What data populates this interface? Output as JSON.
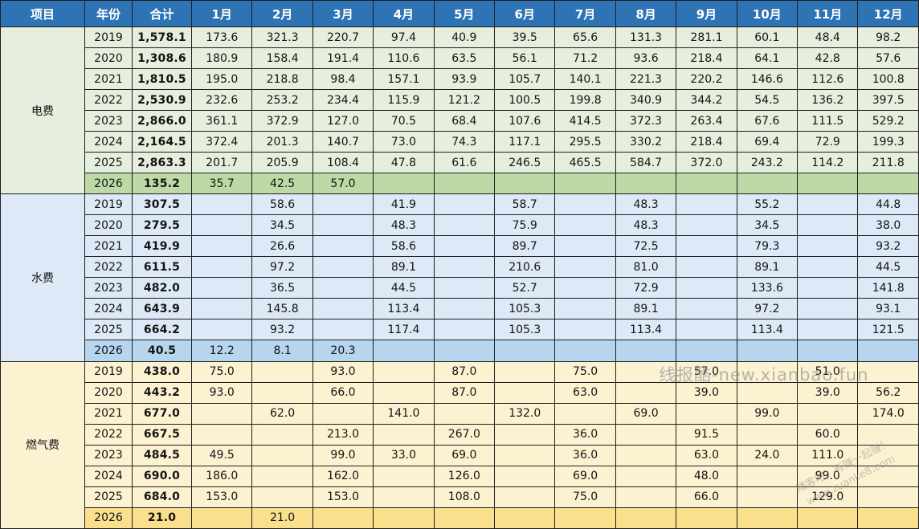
{
  "colors": {
    "header_bg": "#2e74b5",
    "header_text": "#ffffff",
    "grid_line": "#1f1f1f",
    "text": "#141414"
  },
  "columns": [
    "项目",
    "年份",
    "合计",
    "1月",
    "2月",
    "3月",
    "4月",
    "5月",
    "6月",
    "7月",
    "8月",
    "9月",
    "10月",
    "11月",
    "12月"
  ],
  "watermarks": {
    "horizontal": "线报酷-new.xianbao.fun",
    "rotated_line1": "赚客吧，有赚一起赚！",
    "rotated_line2": "www.zuanke8.com"
  },
  "sections": [
    {
      "label": "电费",
      "row_bg": "#e6efdd",
      "label_bg": "#e6efdd",
      "highlight_bg": "#bcd9a6",
      "rows": [
        {
          "year": "2019",
          "total": "1,578.1",
          "months": [
            "173.6",
            "321.3",
            "220.7",
            "97.4",
            "40.9",
            "39.5",
            "65.6",
            "131.3",
            "281.1",
            "60.1",
            "48.4",
            "98.2"
          ]
        },
        {
          "year": "2020",
          "total": "1,308.6",
          "months": [
            "180.9",
            "158.4",
            "191.4",
            "110.6",
            "63.5",
            "56.1",
            "71.2",
            "93.6",
            "218.4",
            "64.1",
            "42.8",
            "57.6"
          ]
        },
        {
          "year": "2021",
          "total": "1,810.5",
          "months": [
            "195.0",
            "218.8",
            "98.4",
            "157.1",
            "93.9",
            "105.7",
            "140.1",
            "221.3",
            "220.2",
            "146.6",
            "112.6",
            "100.8"
          ]
        },
        {
          "year": "2022",
          "total": "2,530.9",
          "months": [
            "232.6",
            "253.2",
            "234.4",
            "115.9",
            "121.2",
            "100.5",
            "199.8",
            "340.9",
            "344.2",
            "54.5",
            "136.2",
            "397.5"
          ]
        },
        {
          "year": "2023",
          "total": "2,866.0",
          "months": [
            "361.1",
            "372.9",
            "127.0",
            "70.5",
            "68.4",
            "107.6",
            "414.5",
            "372.3",
            "263.4",
            "67.6",
            "111.5",
            "529.2"
          ]
        },
        {
          "year": "2024",
          "total": "2,164.5",
          "months": [
            "372.4",
            "201.3",
            "140.7",
            "73.0",
            "74.3",
            "117.1",
            "295.5",
            "330.2",
            "218.4",
            "69.4",
            "72.9",
            "199.3"
          ]
        },
        {
          "year": "2025",
          "total": "2,863.3",
          "months": [
            "201.7",
            "205.9",
            "108.4",
            "47.8",
            "61.6",
            "246.5",
            "465.5",
            "584.7",
            "372.0",
            "243.2",
            "114.2",
            "211.8"
          ]
        },
        {
          "year": "2026",
          "total": "135.2",
          "highlight": true,
          "months": [
            "35.7",
            "42.5",
            "57.0",
            "",
            "",
            "",
            "",
            "",
            "",
            "",
            "",
            ""
          ]
        }
      ]
    },
    {
      "label": "水费",
      "row_bg": "#dde9f6",
      "label_bg": "#dde9f6",
      "highlight_bg": "#b7d5ee",
      "rows": [
        {
          "year": "2019",
          "total": "307.5",
          "months": [
            "",
            "58.6",
            "",
            "41.9",
            "",
            "58.7",
            "",
            "48.3",
            "",
            "55.2",
            "",
            "44.8"
          ]
        },
        {
          "year": "2020",
          "total": "279.5",
          "months": [
            "",
            "34.5",
            "",
            "48.3",
            "",
            "75.9",
            "",
            "48.3",
            "",
            "34.5",
            "",
            "38.0"
          ]
        },
        {
          "year": "2021",
          "total": "419.9",
          "months": [
            "",
            "26.6",
            "",
            "58.6",
            "",
            "89.7",
            "",
            "72.5",
            "",
            "79.3",
            "",
            "93.2"
          ]
        },
        {
          "year": "2022",
          "total": "611.5",
          "months": [
            "",
            "97.2",
            "",
            "89.1",
            "",
            "210.6",
            "",
            "81.0",
            "",
            "89.1",
            "",
            "44.5"
          ]
        },
        {
          "year": "2023",
          "total": "482.0",
          "months": [
            "",
            "36.5",
            "",
            "44.5",
            "",
            "52.7",
            "",
            "72.9",
            "",
            "133.6",
            "",
            "141.8"
          ]
        },
        {
          "year": "2024",
          "total": "643.9",
          "months": [
            "",
            "145.8",
            "",
            "113.4",
            "",
            "105.3",
            "",
            "89.1",
            "",
            "97.2",
            "",
            "93.1"
          ]
        },
        {
          "year": "2025",
          "total": "664.2",
          "months": [
            "",
            "93.2",
            "",
            "117.4",
            "",
            "105.3",
            "",
            "113.4",
            "",
            "113.4",
            "",
            "121.5"
          ]
        },
        {
          "year": "2026",
          "total": "40.5",
          "highlight": true,
          "months": [
            "12.2",
            "8.1",
            "20.3",
            "",
            "",
            "",
            "",
            "",
            "",
            "",
            "",
            ""
          ]
        }
      ]
    },
    {
      "label": "燃气费",
      "row_bg": "#fcf2d2",
      "label_bg": "#fcf2d2",
      "highlight_bg": "#fadf8d",
      "rows": [
        {
          "year": "2019",
          "total": "438.0",
          "months": [
            "75.0",
            "",
            "93.0",
            "",
            "87.0",
            "",
            "75.0",
            "",
            "57.0",
            "",
            "51.0",
            ""
          ]
        },
        {
          "year": "2020",
          "total": "443.2",
          "months": [
            "93.0",
            "",
            "66.0",
            "",
            "87.0",
            "",
            "63.0",
            "",
            "39.0",
            "",
            "39.0",
            "56.2"
          ]
        },
        {
          "year": "2021",
          "total": "677.0",
          "months": [
            "",
            "62.0",
            "",
            "141.0",
            "",
            "132.0",
            "",
            "69.0",
            "",
            "99.0",
            "",
            "174.0"
          ]
        },
        {
          "year": "2022",
          "total": "667.5",
          "months": [
            "",
            "",
            "213.0",
            "",
            "267.0",
            "",
            "36.0",
            "",
            "91.5",
            "",
            "60.0",
            ""
          ]
        },
        {
          "year": "2023",
          "total": "484.5",
          "months": [
            "49.5",
            "",
            "99.0",
            "33.0",
            "69.0",
            "",
            "36.0",
            "",
            "63.0",
            "24.0",
            "111.0",
            ""
          ]
        },
        {
          "year": "2024",
          "total": "690.0",
          "months": [
            "186.0",
            "",
            "162.0",
            "",
            "126.0",
            "",
            "69.0",
            "",
            "48.0",
            "",
            "99.0",
            ""
          ]
        },
        {
          "year": "2025",
          "total": "684.0",
          "months": [
            "153.0",
            "",
            "153.0",
            "",
            "108.0",
            "",
            "75.0",
            "",
            "66.0",
            "",
            "129.0",
            ""
          ]
        },
        {
          "year": "2026",
          "total": "21.0",
          "highlight": true,
          "months": [
            "",
            "21.0",
            "",
            "",
            "",
            "",
            "",
            "",
            "",
            "",
            "",
            ""
          ]
        }
      ]
    }
  ]
}
